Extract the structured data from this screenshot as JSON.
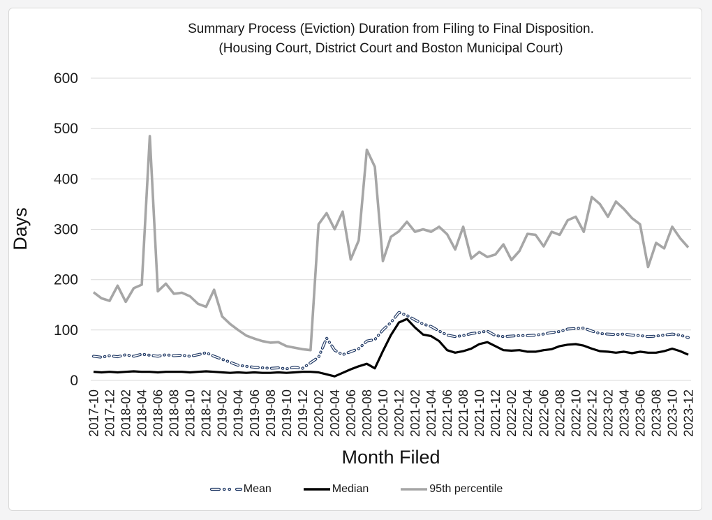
{
  "frame": {
    "page_background": "#f4f4f5",
    "card_background": "#ffffff",
    "card_border": "#d8d8d8",
    "gridline_color": "#d9d9d9"
  },
  "chart_data": {
    "type": "line",
    "title_line1": "Summary Process (Eviction) Duration from Filing to Final Disposition.",
    "title_line2": "(Housing Court, District Court and Boston Municipal Court)",
    "xlabel": "Month Filed",
    "ylabel": "Days",
    "ylim": [
      0,
      600
    ],
    "y_ticks": [
      0,
      100,
      200,
      300,
      400,
      500,
      600
    ],
    "grid": true,
    "legend_position": "bottom",
    "x_tick_labels": [
      "2017-10",
      "2017-12",
      "2018-02",
      "2018-04",
      "2018-06",
      "2018-08",
      "2018-10",
      "2018-12",
      "2019-02",
      "2019-04",
      "2019-06",
      "2019-08",
      "2019-10",
      "2019-12",
      "2020-02",
      "2020-04",
      "2020-06",
      "2020-08",
      "2020-10",
      "2020-12",
      "2021-02",
      "2021-04",
      "2021-06",
      "2021-08",
      "2021-10",
      "2021-12",
      "2022-02",
      "2022-04",
      "2022-06",
      "2022-08",
      "2022-10",
      "2022-12",
      "2023-02",
      "2023-04",
      "2023-06",
      "2023-08",
      "2023-10",
      "2023-12"
    ],
    "x": [
      "2017-10",
      "2017-11",
      "2017-12",
      "2018-01",
      "2018-02",
      "2018-03",
      "2018-04",
      "2018-05",
      "2018-06",
      "2018-07",
      "2018-08",
      "2018-09",
      "2018-10",
      "2018-11",
      "2018-12",
      "2019-01",
      "2019-02",
      "2019-03",
      "2019-04",
      "2019-05",
      "2019-06",
      "2019-07",
      "2019-08",
      "2019-09",
      "2019-10",
      "2019-11",
      "2019-12",
      "2020-01",
      "2020-02",
      "2020-03",
      "2020-04",
      "2020-05",
      "2020-06",
      "2020-07",
      "2020-08",
      "2020-09",
      "2020-10",
      "2020-11",
      "2020-12",
      "2021-01",
      "2021-02",
      "2021-03",
      "2021-04",
      "2021-05",
      "2021-06",
      "2021-07",
      "2021-08",
      "2021-09",
      "2021-10",
      "2021-11",
      "2021-12",
      "2022-01",
      "2022-02",
      "2022-03",
      "2022-04",
      "2022-05",
      "2022-06",
      "2022-07",
      "2022-08",
      "2022-09",
      "2022-10",
      "2022-11",
      "2022-12",
      "2023-01",
      "2023-02",
      "2023-03",
      "2023-04",
      "2023-05",
      "2023-06",
      "2023-07",
      "2023-08",
      "2023-09",
      "2023-10",
      "2023-11",
      "2023-12"
    ],
    "series": [
      {
        "name": "Mean",
        "color": "#1f3864",
        "style": "dash-dot-dot",
        "values": [
          48,
          46,
          49,
          47,
          51,
          48,
          52,
          50,
          48,
          51,
          49,
          50,
          48,
          51,
          55,
          48,
          42,
          36,
          30,
          28,
          26,
          25,
          24,
          25,
          23,
          26,
          24,
          35,
          46,
          84,
          60,
          51,
          57,
          63,
          78,
          81,
          100,
          115,
          135,
          129,
          120,
          112,
          107,
          98,
          90,
          87,
          89,
          93,
          95,
          98,
          89,
          87,
          88,
          89,
          89,
          90,
          92,
          95,
          97,
          102,
          103,
          104,
          98,
          93,
          92,
          91,
          92,
          90,
          89,
          87,
          88,
          90,
          92,
          90,
          85
        ]
      },
      {
        "name": "Median",
        "color": "#000000",
        "style": "solid",
        "values": [
          17,
          16,
          17,
          16,
          17,
          18,
          17,
          17,
          16,
          17,
          17,
          17,
          16,
          17,
          18,
          17,
          16,
          15,
          16,
          15,
          16,
          15,
          15,
          16,
          15,
          16,
          17,
          17,
          16,
          12,
          8,
          15,
          22,
          28,
          33,
          24,
          58,
          90,
          115,
          122,
          105,
          91,
          88,
          78,
          60,
          55,
          58,
          63,
          72,
          76,
          68,
          60,
          59,
          60,
          57,
          57,
          60,
          62,
          68,
          71,
          72,
          69,
          63,
          58,
          57,
          55,
          57,
          54,
          57,
          55,
          55,
          58,
          63,
          58,
          51
        ]
      },
      {
        "name": "95th percentile",
        "color": "#a6a6a6",
        "style": "solid",
        "values": [
          175,
          163,
          158,
          188,
          156,
          183,
          190,
          485,
          177,
          192,
          172,
          174,
          167,
          152,
          146,
          180,
          127,
          112,
          100,
          89,
          83,
          78,
          75,
          76,
          68,
          65,
          62,
          60,
          310,
          332,
          300,
          335,
          240,
          278,
          458,
          424,
          237,
          285,
          296,
          315,
          295,
          300,
          295,
          305,
          290,
          260,
          305,
          242,
          255,
          245,
          250,
          270,
          239,
          257,
          291,
          289,
          266,
          295,
          289,
          318,
          325,
          295,
          364,
          350,
          325,
          355,
          340,
          322,
          310,
          225,
          273,
          262,
          305,
          282,
          264
        ]
      }
    ]
  }
}
